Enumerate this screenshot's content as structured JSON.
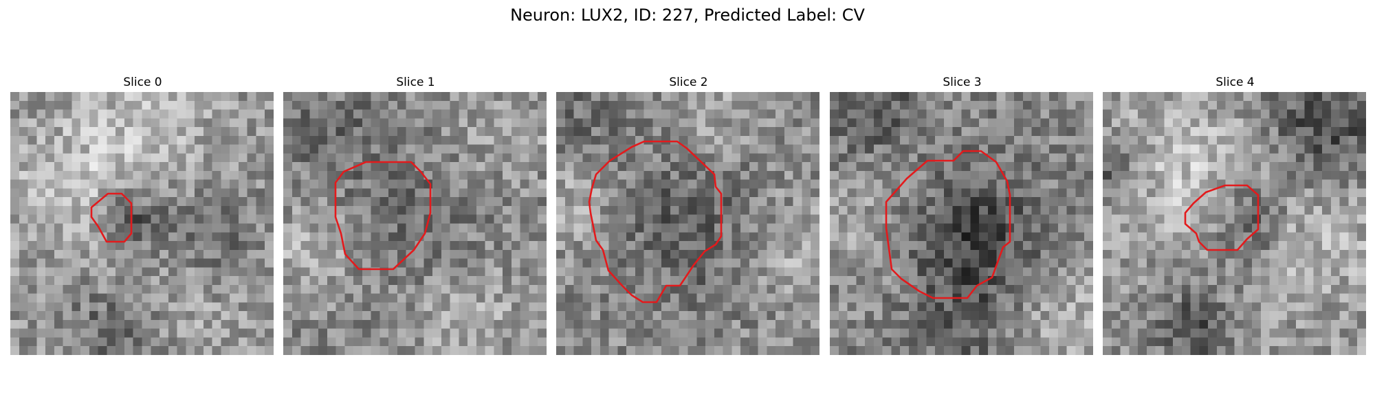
{
  "suptitle": "Neuron: LUX2, ID: 227, Predicted Label: CV",
  "contour_color": "#e31a1c",
  "colormap": "gray",
  "panels": [
    {
      "title": "Slice 0"
    },
    {
      "title": "Slice 1"
    },
    {
      "title": "Slice 2"
    },
    {
      "title": "Slice 3"
    },
    {
      "title": "Slice 4"
    }
  ]
}
